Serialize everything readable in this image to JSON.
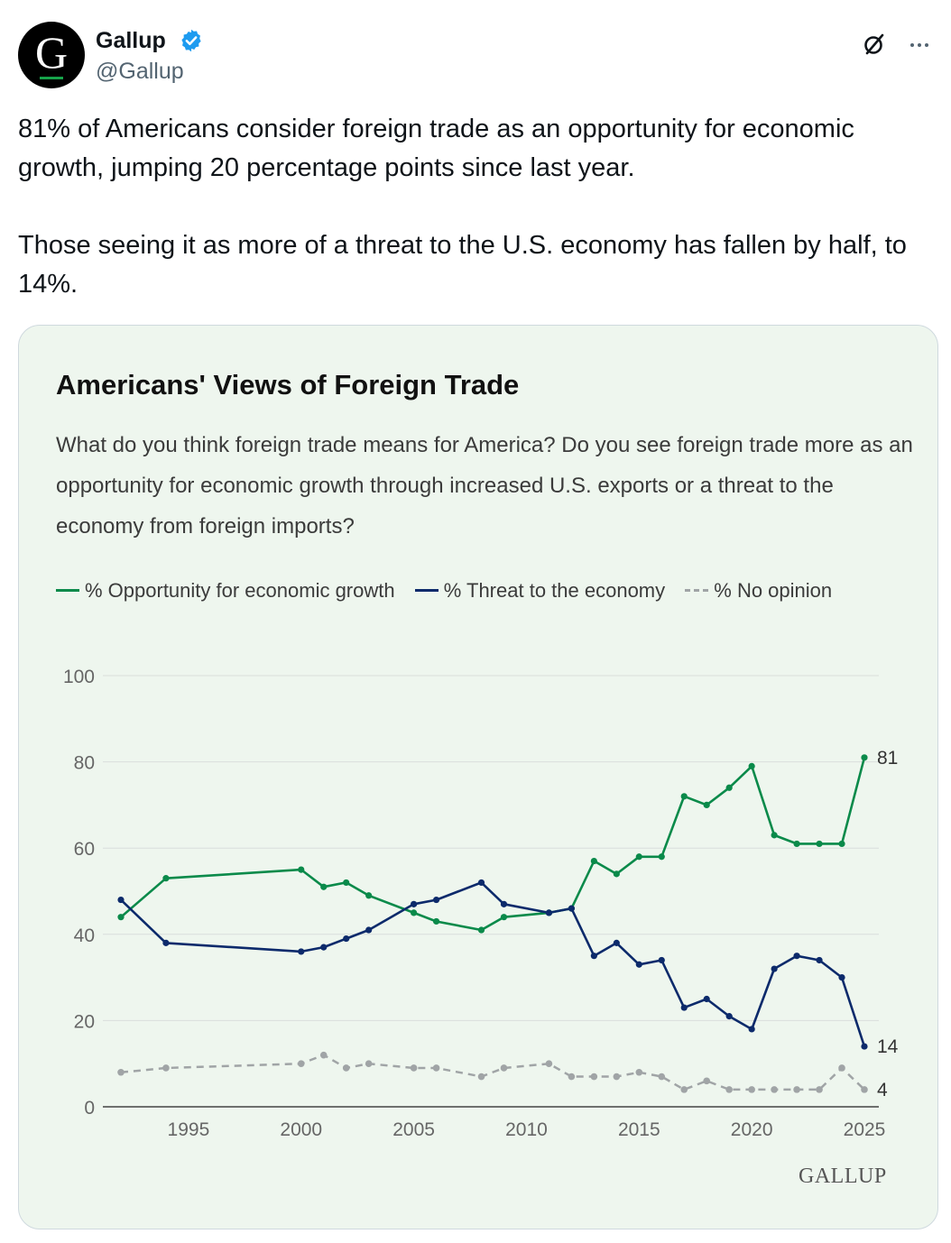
{
  "tweet": {
    "author": {
      "display_name": "Gallup",
      "handle": "@Gallup",
      "avatar_letter": "G",
      "verified_icon": "verified-badge-icon",
      "verified_color": "#1d9bf0"
    },
    "header_icons": [
      "grok-icon",
      "more-options-icon"
    ],
    "text_paragraphs": [
      "81% of Americans consider foreign trade as an opportunity for economic growth, jumping 20 percentage points since last year.",
      "Those seeing it as more of a threat to the U.S. economy has fallen by half, to 14%."
    ]
  },
  "card": {
    "background": "#eef6ee",
    "brand": "GALLUP"
  },
  "chart_data": {
    "type": "line",
    "title": "Americans' Views of Foreign Trade",
    "subtitle": "What do you think foreign trade means for America? Do you see foreign trade more as an opportunity for economic growth through increased U.S. exports or a threat to the economy from foreign imports?",
    "xlabel": "",
    "ylabel": "",
    "xlim": [
      1992,
      2025
    ],
    "ylim": [
      0,
      100
    ],
    "x_ticks": [
      "1995",
      "2000",
      "2005",
      "2010",
      "2015",
      "2020",
      "2025"
    ],
    "y_ticks": [
      "0",
      "20",
      "40",
      "60",
      "80",
      "100"
    ],
    "grid": "horizontal",
    "legend_position": "top-left",
    "x": [
      1992,
      1994,
      2000,
      2001,
      2002,
      2003,
      2005,
      2006,
      2008,
      2009,
      2011,
      2012,
      2013,
      2014,
      2015,
      2016,
      2017,
      2018,
      2019,
      2020,
      2021,
      2022,
      2023,
      2024,
      2025
    ],
    "series": [
      {
        "name": "% Opportunity for economic growth",
        "color": "#0a8a4a",
        "dash": "solid",
        "values": [
          44,
          53,
          55,
          51,
          52,
          49,
          45,
          43,
          41,
          44,
          45,
          46,
          57,
          54,
          58,
          58,
          72,
          70,
          74,
          79,
          63,
          61,
          61,
          61,
          81
        ],
        "end_label": "81"
      },
      {
        "name": "% Threat to the economy",
        "color": "#0c2a6b",
        "dash": "solid",
        "values": [
          48,
          38,
          36,
          37,
          39,
          41,
          47,
          48,
          52,
          47,
          45,
          46,
          35,
          38,
          33,
          34,
          23,
          25,
          21,
          18,
          32,
          35,
          34,
          30,
          14
        ],
        "end_label": "14"
      },
      {
        "name": "% No opinion",
        "color": "#a0a4a6",
        "dash": "dashed",
        "values": [
          8,
          9,
          10,
          12,
          9,
          10,
          9,
          9,
          7,
          9,
          10,
          7,
          7,
          7,
          8,
          7,
          4,
          6,
          4,
          4,
          4,
          4,
          4,
          9,
          4
        ],
        "end_label": "4"
      }
    ]
  }
}
